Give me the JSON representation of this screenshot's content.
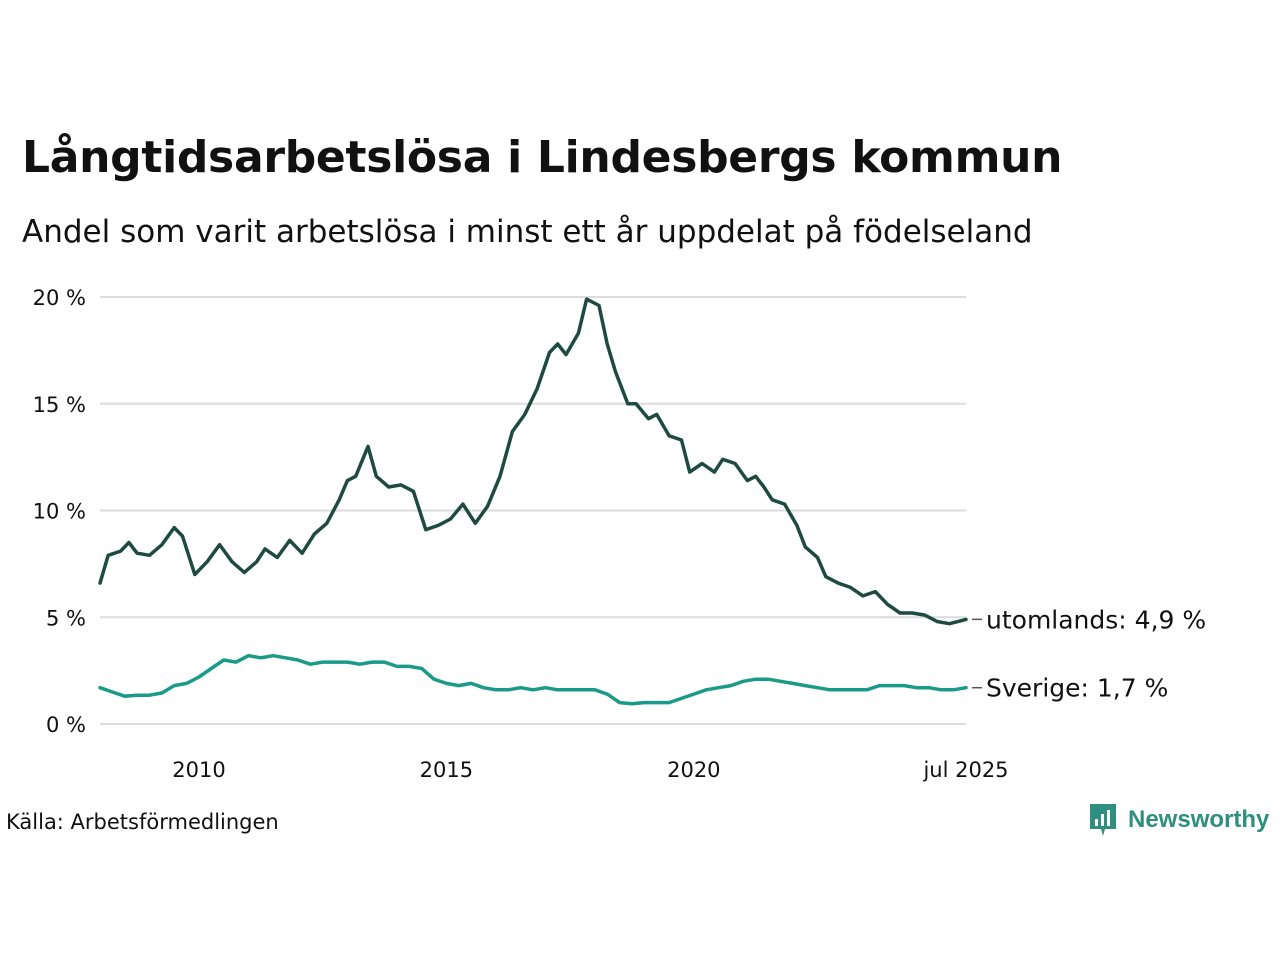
{
  "title": "Långtidsarbetslösa i Lindesbergs kommun",
  "subtitle": "Andel som varit arbetslösa i minst ett år uppdelat på födelseland",
  "source": "Källa: Arbetsförmedlingen",
  "brand": "Newsworthy",
  "colors": {
    "utomlands": "#1f4a40",
    "sverige": "#1a9a88",
    "grid": "#dcdcdc",
    "brand": "#2e8f7f"
  },
  "chart_data": {
    "type": "line",
    "title": "Långtidsarbetslösa i Lindesbergs kommun",
    "subtitle": "Andel som varit arbetslösa i minst ett år uppdelat på födelseland",
    "xlabel": "",
    "ylabel": "",
    "ylim": [
      0,
      20
    ],
    "xlim": [
      "2008-01",
      "2025-07"
    ],
    "yticks": [
      0,
      5,
      10,
      15,
      20
    ],
    "ytick_labels": [
      "0 %",
      "5 %",
      "10 %",
      "15 %",
      "20 %"
    ],
    "xticks": [
      "2010-01",
      "2015-01",
      "2020-01",
      "2025-07"
    ],
    "xtick_labels": [
      "2010",
      "2015",
      "2020",
      "jul 2025"
    ],
    "grid": true,
    "legend": "direct labels at line ends",
    "series": [
      {
        "name": "utomlands",
        "end_label": "utomlands: 4,9 %",
        "points": [
          [
            "2008-01",
            6.6
          ],
          [
            "2008-03",
            7.9
          ],
          [
            "2008-06",
            8.1
          ],
          [
            "2008-08",
            8.5
          ],
          [
            "2008-10",
            8.0
          ],
          [
            "2009-01",
            7.9
          ],
          [
            "2009-04",
            8.4
          ],
          [
            "2009-07",
            9.2
          ],
          [
            "2009-09",
            8.8
          ],
          [
            "2009-12",
            7.0
          ],
          [
            "2010-03",
            7.6
          ],
          [
            "2010-06",
            8.4
          ],
          [
            "2010-09",
            7.6
          ],
          [
            "2010-12",
            7.1
          ],
          [
            "2011-03",
            7.6
          ],
          [
            "2011-05",
            8.2
          ],
          [
            "2011-08",
            7.8
          ],
          [
            "2011-11",
            8.6
          ],
          [
            "2012-02",
            8.0
          ],
          [
            "2012-05",
            8.9
          ],
          [
            "2012-08",
            9.4
          ],
          [
            "2012-11",
            10.5
          ],
          [
            "2013-01",
            11.4
          ],
          [
            "2013-03",
            11.6
          ],
          [
            "2013-06",
            13.0
          ],
          [
            "2013-08",
            11.6
          ],
          [
            "2013-11",
            11.1
          ],
          [
            "2014-02",
            11.2
          ],
          [
            "2014-05",
            10.9
          ],
          [
            "2014-08",
            9.1
          ],
          [
            "2014-11",
            9.3
          ],
          [
            "2015-02",
            9.6
          ],
          [
            "2015-05",
            10.3
          ],
          [
            "2015-08",
            9.4
          ],
          [
            "2015-11",
            10.2
          ],
          [
            "2016-02",
            11.6
          ],
          [
            "2016-05",
            13.7
          ],
          [
            "2016-08",
            14.5
          ],
          [
            "2016-11",
            15.7
          ],
          [
            "2017-02",
            17.4
          ],
          [
            "2017-04",
            17.8
          ],
          [
            "2017-06",
            17.3
          ],
          [
            "2017-09",
            18.3
          ],
          [
            "2017-11",
            19.9
          ],
          [
            "2018-02",
            19.6
          ],
          [
            "2018-04",
            17.8
          ],
          [
            "2018-06",
            16.5
          ],
          [
            "2018-09",
            15.0
          ],
          [
            "2018-11",
            15.0
          ],
          [
            "2019-02",
            14.3
          ],
          [
            "2019-04",
            14.5
          ],
          [
            "2019-07",
            13.5
          ],
          [
            "2019-10",
            13.3
          ],
          [
            "2019-12",
            11.8
          ],
          [
            "2020-03",
            12.2
          ],
          [
            "2020-06",
            11.8
          ],
          [
            "2020-08",
            12.4
          ],
          [
            "2020-11",
            12.2
          ],
          [
            "2021-02",
            11.4
          ],
          [
            "2021-04",
            11.6
          ],
          [
            "2021-06",
            11.1
          ],
          [
            "2021-08",
            10.5
          ],
          [
            "2021-11",
            10.3
          ],
          [
            "2022-02",
            9.3
          ],
          [
            "2022-04",
            8.3
          ],
          [
            "2022-07",
            7.8
          ],
          [
            "2022-09",
            6.9
          ],
          [
            "2022-12",
            6.6
          ],
          [
            "2023-03",
            6.4
          ],
          [
            "2023-06",
            6.0
          ],
          [
            "2023-09",
            6.2
          ],
          [
            "2023-12",
            5.6
          ],
          [
            "2024-03",
            5.2
          ],
          [
            "2024-06",
            5.2
          ],
          [
            "2024-09",
            5.1
          ],
          [
            "2024-12",
            4.8
          ],
          [
            "2025-03",
            4.7
          ],
          [
            "2025-07",
            4.9
          ]
        ]
      },
      {
        "name": "Sverige",
        "end_label": "Sverige: 1,7 %",
        "points": [
          [
            "2008-01",
            1.7
          ],
          [
            "2008-04",
            1.5
          ],
          [
            "2008-07",
            1.3
          ],
          [
            "2008-10",
            1.35
          ],
          [
            "2009-01",
            1.35
          ],
          [
            "2009-04",
            1.45
          ],
          [
            "2009-07",
            1.8
          ],
          [
            "2009-10",
            1.9
          ],
          [
            "2010-01",
            2.2
          ],
          [
            "2010-04",
            2.6
          ],
          [
            "2010-07",
            3.0
          ],
          [
            "2010-10",
            2.9
          ],
          [
            "2011-01",
            3.2
          ],
          [
            "2011-04",
            3.1
          ],
          [
            "2011-07",
            3.2
          ],
          [
            "2011-10",
            3.1
          ],
          [
            "2012-01",
            3.0
          ],
          [
            "2012-04",
            2.8
          ],
          [
            "2012-07",
            2.9
          ],
          [
            "2012-10",
            2.9
          ],
          [
            "2013-01",
            2.9
          ],
          [
            "2013-04",
            2.8
          ],
          [
            "2013-07",
            2.9
          ],
          [
            "2013-10",
            2.9
          ],
          [
            "2014-01",
            2.7
          ],
          [
            "2014-04",
            2.7
          ],
          [
            "2014-07",
            2.6
          ],
          [
            "2014-10",
            2.1
          ],
          [
            "2015-01",
            1.9
          ],
          [
            "2015-04",
            1.8
          ],
          [
            "2015-07",
            1.9
          ],
          [
            "2015-10",
            1.7
          ],
          [
            "2016-01",
            1.6
          ],
          [
            "2016-04",
            1.6
          ],
          [
            "2016-07",
            1.7
          ],
          [
            "2016-10",
            1.6
          ],
          [
            "2017-01",
            1.7
          ],
          [
            "2017-04",
            1.6
          ],
          [
            "2017-07",
            1.6
          ],
          [
            "2017-10",
            1.6
          ],
          [
            "2018-01",
            1.6
          ],
          [
            "2018-04",
            1.4
          ],
          [
            "2018-07",
            1.0
          ],
          [
            "2018-10",
            0.95
          ],
          [
            "2019-01",
            1.0
          ],
          [
            "2019-04",
            1.0
          ],
          [
            "2019-07",
            1.0
          ],
          [
            "2019-10",
            1.2
          ],
          [
            "2020-01",
            1.4
          ],
          [
            "2020-04",
            1.6
          ],
          [
            "2020-07",
            1.7
          ],
          [
            "2020-10",
            1.8
          ],
          [
            "2021-01",
            2.0
          ],
          [
            "2021-04",
            2.1
          ],
          [
            "2021-07",
            2.1
          ],
          [
            "2021-10",
            2.0
          ],
          [
            "2022-01",
            1.9
          ],
          [
            "2022-04",
            1.8
          ],
          [
            "2022-07",
            1.7
          ],
          [
            "2022-10",
            1.6
          ],
          [
            "2023-01",
            1.6
          ],
          [
            "2023-04",
            1.6
          ],
          [
            "2023-07",
            1.6
          ],
          [
            "2023-10",
            1.8
          ],
          [
            "2024-01",
            1.8
          ],
          [
            "2024-04",
            1.8
          ],
          [
            "2024-07",
            1.7
          ],
          [
            "2024-10",
            1.7
          ],
          [
            "2025-01",
            1.6
          ],
          [
            "2025-04",
            1.6
          ],
          [
            "2025-07",
            1.7
          ]
        ]
      }
    ]
  }
}
